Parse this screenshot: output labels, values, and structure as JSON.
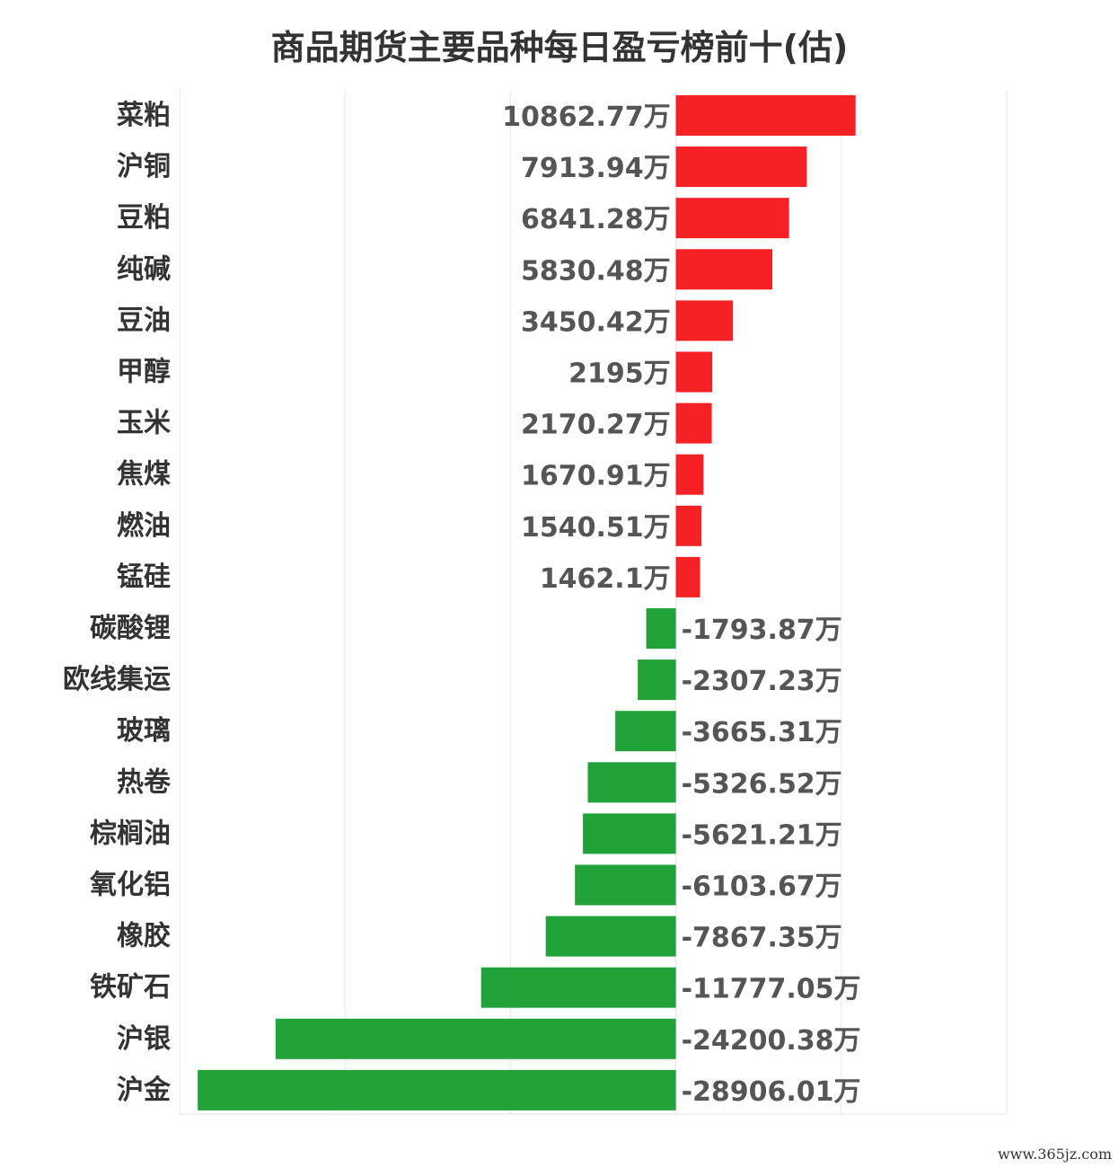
{
  "chart_data": {
    "type": "bar",
    "orientation": "horizontal",
    "title": "商品期货主要品种每日盈亏榜前十(估)",
    "unit": "万",
    "categories": [
      "菜粕",
      "沪铜",
      "豆粕",
      "纯碱",
      "豆油",
      "甲醇",
      "玉米",
      "焦煤",
      "燃油",
      "锰硅",
      "碳酸锂",
      "欧线集运",
      "玻璃",
      "热卷",
      "棕榈油",
      "氧化铝",
      "橡胶",
      "铁矿石",
      "沪银",
      "沪金"
    ],
    "values": [
      10862.77,
      7913.94,
      6841.28,
      5830.48,
      3450.42,
      2195,
      2170.27,
      1670.91,
      1540.51,
      1462.1,
      -1793.87,
      -2307.23,
      -3665.31,
      -5326.52,
      -5621.21,
      -6103.67,
      -7867.35,
      -11777.05,
      -24200.38,
      -28906.01
    ],
    "value_labels": [
      "10862.77万",
      "7913.94万",
      "6841.28万",
      "5830.48万",
      "3450.42万",
      "2195万",
      "2170.27万",
      "1670.91万",
      "1540.51万",
      "1462.1万",
      "-1793.87万",
      "-2307.23万",
      "-3665.31万",
      "-5326.52万",
      "-5621.21万",
      "-6103.67万",
      "-7867.35万",
      "-11777.05万",
      "-24200.38万",
      "-28906.01万"
    ],
    "xlim": [
      -30000,
      20000
    ],
    "grid": true,
    "colors": {
      "positive": "#f52125",
      "negative": "#22a33a",
      "label": "#555555",
      "category": "#333333",
      "grid": "#e6e6e6"
    }
  },
  "watermark": "www.365jz.com"
}
